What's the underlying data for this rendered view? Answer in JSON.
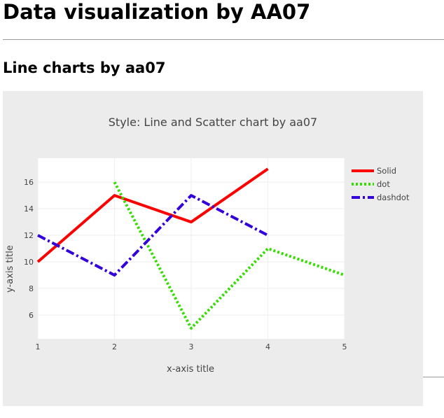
{
  "page": {
    "heading": "Data visualization by AA07",
    "subheading": "Line charts by aa07"
  },
  "chart_data": {
    "type": "line",
    "title": "Style: Line and Scatter chart by aa07",
    "xlabel": "x-axis title",
    "ylabel": "y-axis title",
    "xlim": [
      1,
      5
    ],
    "ylim": [
      4.2,
      17.8
    ],
    "xticks": [
      1,
      2,
      3,
      4,
      5
    ],
    "yticks": [
      6,
      8,
      10,
      12,
      14,
      16
    ],
    "grid": true,
    "legend_position": "top-right",
    "series": [
      {
        "name": "Solid",
        "x": [
          1,
          2,
          3,
          4
        ],
        "y": [
          10,
          15,
          13,
          17
        ],
        "color": "#ff0000",
        "dash": "solid"
      },
      {
        "name": "dot",
        "x": [
          2,
          3,
          4,
          5
        ],
        "y": [
          16,
          5,
          11,
          9
        ],
        "color": "#33dd00",
        "dash": "dot"
      },
      {
        "name": "dashdot",
        "x": [
          1,
          2,
          3,
          4
        ],
        "y": [
          12,
          9,
          15,
          12
        ],
        "color": "#3300dd",
        "dash": "dashdot"
      }
    ]
  }
}
